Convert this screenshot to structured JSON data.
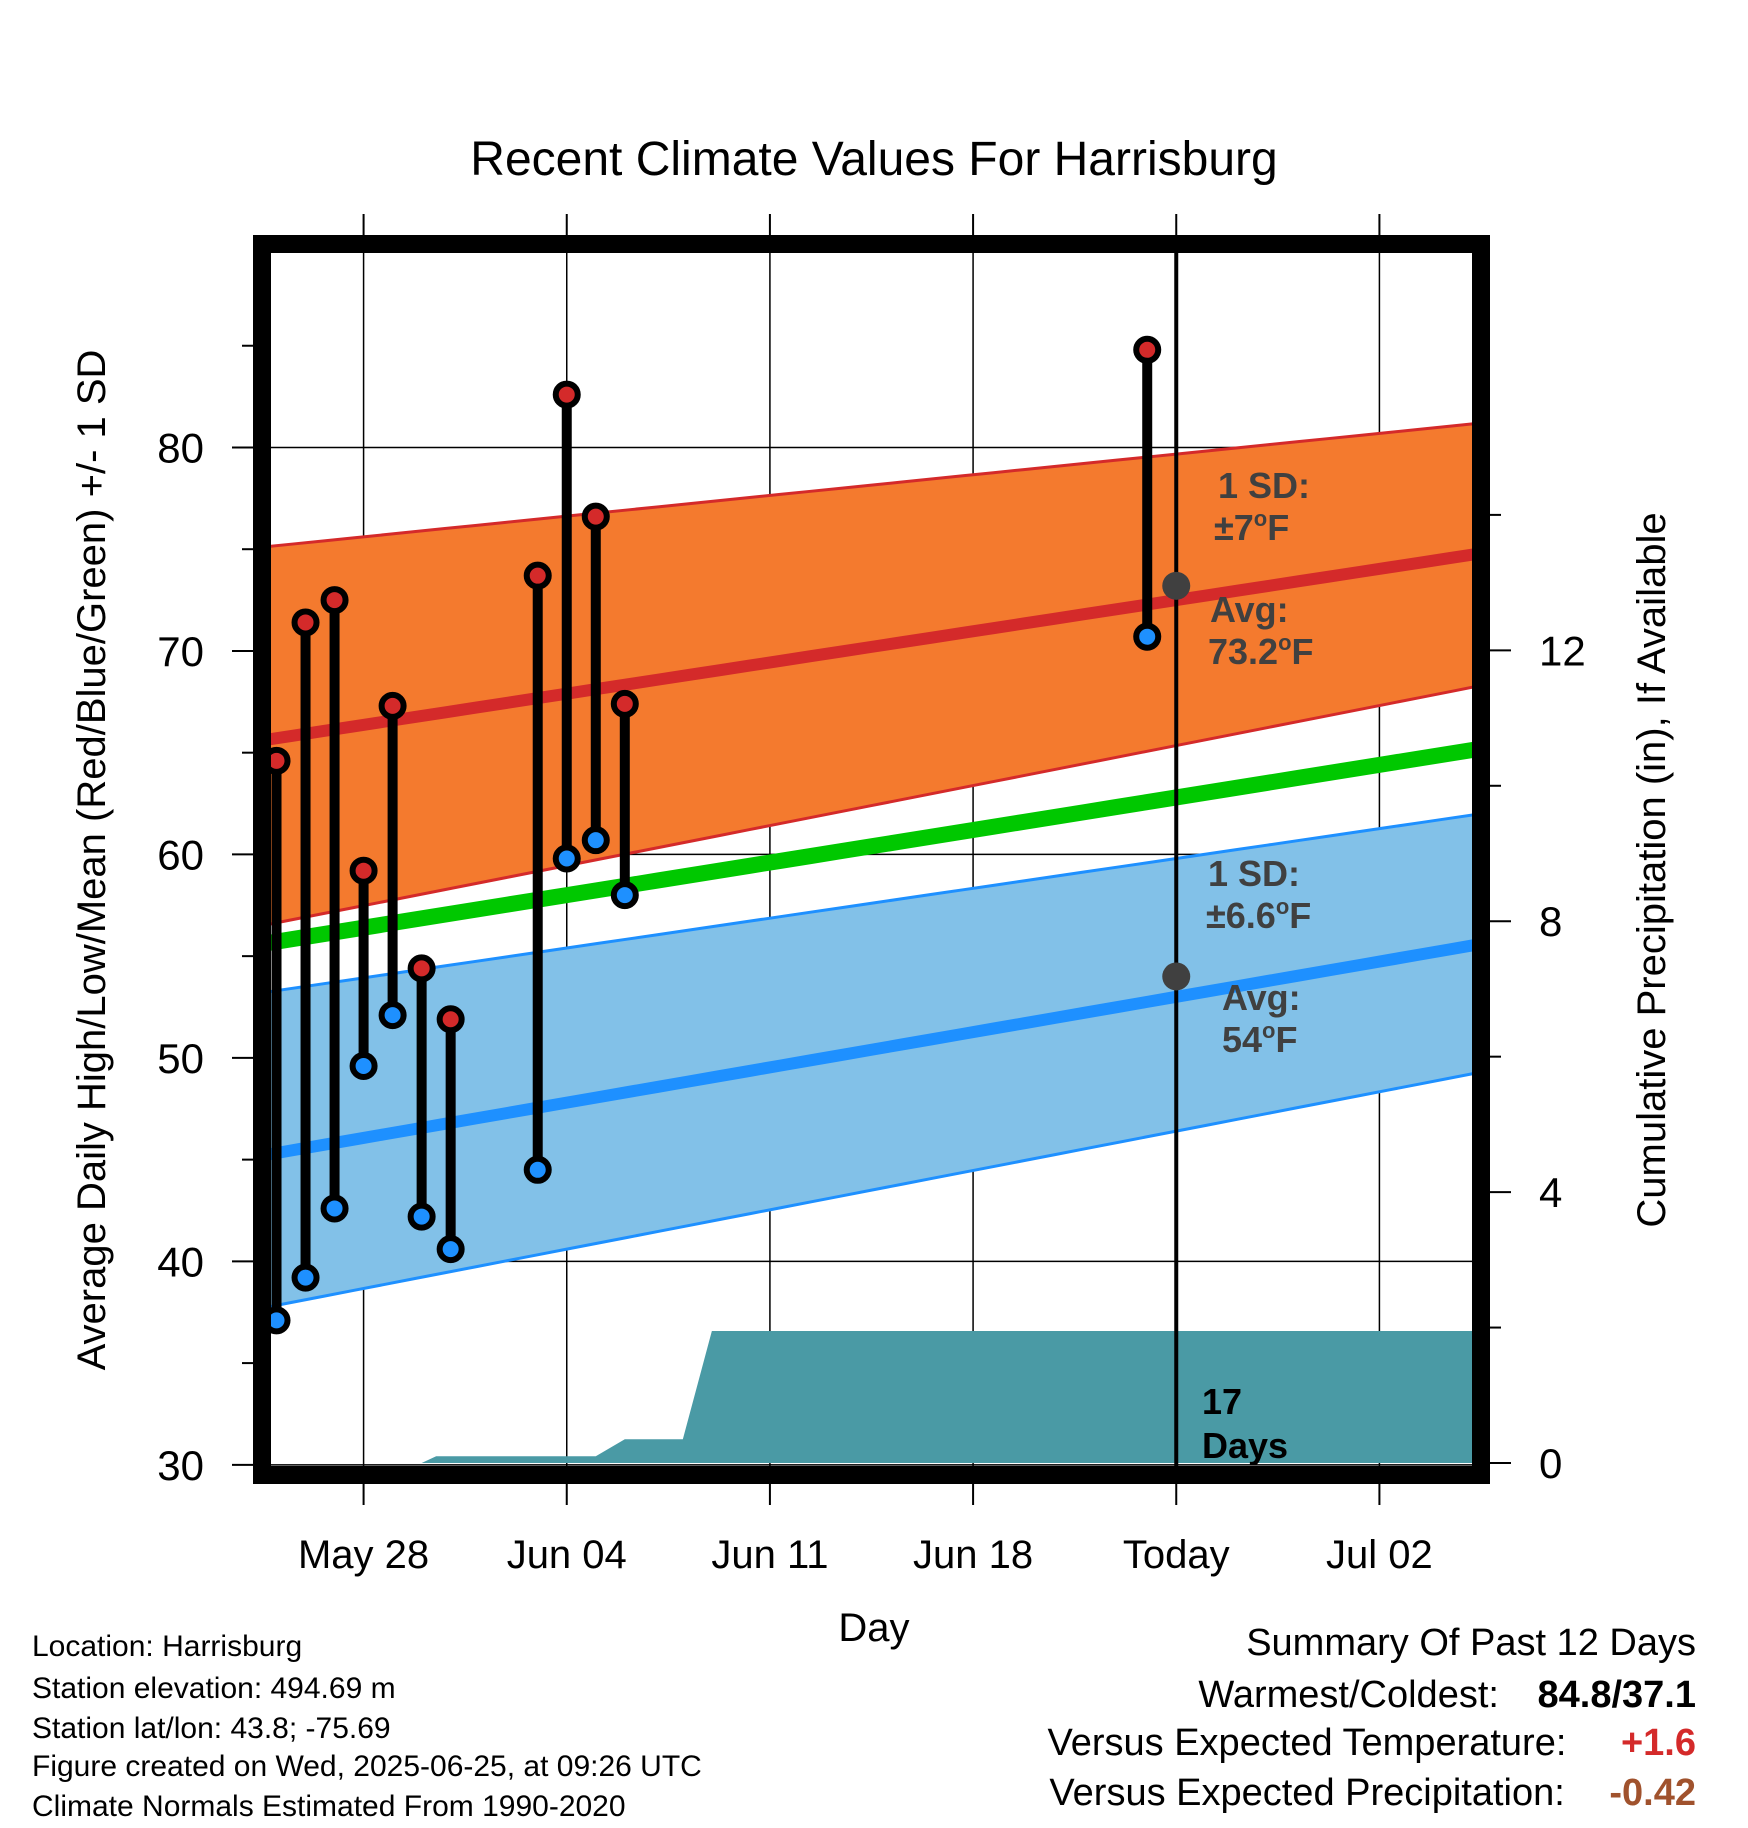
{
  "chart_data": {
    "type": "line",
    "title": "Recent Climate Values For Harrisburg",
    "xlabel": "Day",
    "ylabel": "Average Daily High/Low/Mean (Red/Blue/Green) +/- 1 SD",
    "ylabel_right": "Cumulative Precipitation (in), If Available",
    "x_tick_labels": [
      "May 28",
      "Jun 04",
      "Jun 11",
      "Jun 18",
      "Today",
      "Jul 02"
    ],
    "x_tick_days": [
      3,
      10,
      17,
      24,
      31,
      38
    ],
    "today_day": 31,
    "x_range_days": [
      -0.5,
      41.5
    ],
    "ylim": [
      29.5,
      90
    ],
    "y_ticks": [
      30,
      40,
      50,
      60,
      70,
      80
    ],
    "y2lim": [
      0,
      18
    ],
    "y2_ticks": [
      0,
      4,
      8,
      12
    ],
    "grid": true,
    "normals": {
      "days": [
        -0.5,
        41.5
      ],
      "high_avg": [
        65.6,
        74.8
      ],
      "high_upper": [
        75.1,
        81.2
      ],
      "high_lower": [
        56.5,
        68.3
      ],
      "mean_avg": [
        55.6,
        65.2
      ],
      "low_avg": [
        45.2,
        55.6
      ],
      "low_upper": [
        53.2,
        62.0
      ],
      "low_lower": [
        37.7,
        49.3
      ]
    },
    "observations": [
      {
        "day": 0,
        "high": 64.6,
        "low": 37.1
      },
      {
        "day": 1,
        "high": 71.4,
        "low": 39.2
      },
      {
        "day": 2,
        "high": 72.5,
        "low": 42.6
      },
      {
        "day": 3,
        "high": 59.2,
        "low": 49.6
      },
      {
        "day": 4,
        "high": 67.3,
        "low": 52.1
      },
      {
        "day": 5,
        "high": 54.4,
        "low": 42.2
      },
      {
        "day": 6,
        "high": 51.9,
        "low": 40.6
      },
      {
        "day": 9,
        "high": 73.7,
        "low": 44.5
      },
      {
        "day": 10,
        "high": 82.6,
        "low": 59.8
      },
      {
        "day": 11,
        "high": 76.6,
        "low": 60.7
      },
      {
        "day": 12,
        "high": 67.4,
        "low": 58.0
      },
      {
        "day": 30,
        "high": 84.8,
        "low": 70.7
      }
    ],
    "precipitation": {
      "days": [
        -0.5,
        5,
        5.5,
        11,
        12,
        14,
        15,
        41.5
      ],
      "values": [
        0,
        0,
        0.1,
        0.1,
        0.35,
        0.35,
        1.95,
        1.95
      ]
    },
    "annotations": {
      "high_sd_line1": "1 SD:",
      "high_sd_line2": "±7",
      "high_avg_line1": "Avg:",
      "high_avg_line2": "73.2",
      "high_avg_value": 73.2,
      "low_sd_line1": "1 SD:",
      "low_sd_line2": "±6.6",
      "low_avg_line1": "Avg:",
      "low_avg_line2": "54",
      "low_avg_value": 54,
      "deg_sup": "o",
      "deg_unit": "F",
      "days_line1": "17",
      "days_line2": "Days"
    },
    "colors": {
      "high": "#d42a2a",
      "high_band": "#f47a2e",
      "low": "#1e90ff",
      "low_band": "#82c1e8",
      "mean": "#00c800",
      "precip": "#4a9aa5",
      "marker": "#404040",
      "annotation": "#404040"
    }
  },
  "footer": {
    "location": "Location: Harrisburg",
    "elevation": "Station elevation: 494.69 m",
    "latlon": "Station lat/lon: 43.8; -75.69",
    "created": "Figure created on Wed, 2025-06-25, at 09:26 UTC",
    "normals": "Climate Normals Estimated From 1990-2020"
  },
  "summary": {
    "title": "Summary Of Past 12 Days",
    "warmest_label": "Warmest/Coldest:",
    "warmest_value": "84.8/37.1",
    "temp_label": "Versus Expected Temperature:",
    "temp_value": "+1.6",
    "temp_color": "#d42a2a",
    "precip_label": "Versus Expected Precipitation:",
    "precip_value": "-0.42",
    "precip_color": "#a0522d"
  }
}
